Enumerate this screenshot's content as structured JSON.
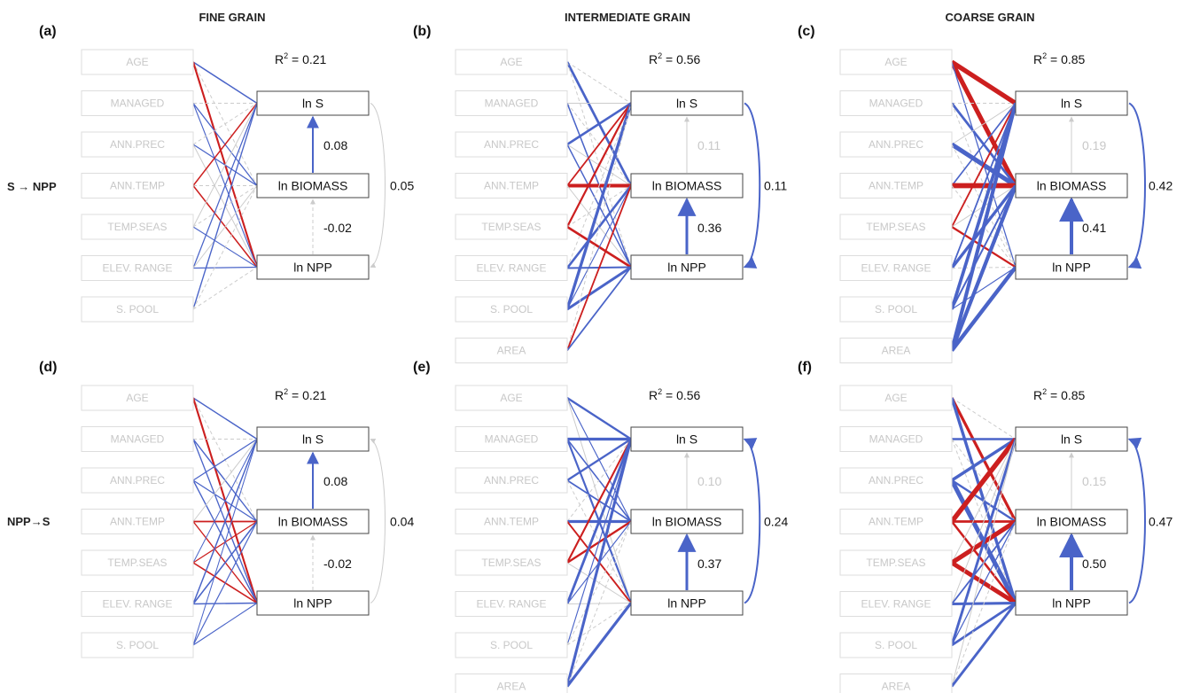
{
  "colors": {
    "blue": "#4a64c8",
    "red": "#cc1f1f",
    "grey": "#cccccc",
    "box_border": "#444444",
    "faded_border": "#dddddd",
    "faded_text": "#c8c8c8"
  },
  "columns": [
    "FINE GRAIN",
    "INTERMEDIATE GRAIN",
    "COARSE GRAIN"
  ],
  "rows": [
    "S → NPP",
    "NPP→S"
  ],
  "panels": [
    {
      "tag": "(a)",
      "r2": "R² = 0.21",
      "r2_base": "R",
      "r2_sup": "2",
      "r2_rest": " = 0.21",
      "predictors": [
        "AGE",
        "MANAGED",
        "ANN.PREC",
        "ANN.TEMP",
        "TEMP.SEAS",
        "ELEV. RANGE",
        "S. POOL"
      ],
      "coef_top": "0.08",
      "coef_bottom": "-0.02",
      "coef_side": "0.05",
      "top_faded": false,
      "bottom_faded": true,
      "side_faded": true,
      "direction": "down"
    },
    {
      "tag": "(b)",
      "r2": "R² = 0.56",
      "r2_base": "R",
      "r2_sup": "2",
      "r2_rest": " = 0.56",
      "predictors": [
        "AGE",
        "MANAGED",
        "ANN.PREC",
        "ANN.TEMP",
        "TEMP.SEAS",
        "ELEV. RANGE",
        "S. POOL",
        "AREA"
      ],
      "coef_top": "0.11",
      "coef_bottom": "0.36",
      "coef_side": "0.11",
      "top_faded": true,
      "bottom_faded": false,
      "side_faded": false,
      "direction": "down"
    },
    {
      "tag": "(c)",
      "r2": "R² = 0.85",
      "r2_base": "R",
      "r2_sup": "2",
      "r2_rest": " = 0.85",
      "predictors": [
        "AGE",
        "MANAGED",
        "ANN.PREC",
        "ANN.TEMP",
        "TEMP.SEAS",
        "ELEV. RANGE",
        "S. POOL",
        "AREA"
      ],
      "coef_top": "0.19",
      "coef_bottom": "0.41",
      "coef_side": "0.42",
      "top_faded": true,
      "bottom_faded": false,
      "side_faded": false,
      "direction": "down"
    },
    {
      "tag": "(d)",
      "r2": "R² = 0.21",
      "r2_base": "R",
      "r2_sup": "2",
      "r2_rest": " = 0.21",
      "predictors": [
        "AGE",
        "MANAGED",
        "ANN.PREC",
        "ANN.TEMP",
        "TEMP.SEAS",
        "ELEV. RANGE",
        "S. POOL"
      ],
      "coef_top": "0.08",
      "coef_bottom": "-0.02",
      "coef_side": "0.04",
      "top_faded": false,
      "bottom_faded": true,
      "side_faded": true,
      "direction": "up"
    },
    {
      "tag": "(e)",
      "r2": "R² = 0.56",
      "r2_base": "R",
      "r2_sup": "2",
      "r2_rest": " = 0.56",
      "predictors": [
        "AGE",
        "MANAGED",
        "ANN.PREC",
        "ANN.TEMP",
        "TEMP.SEAS",
        "ELEV. RANGE",
        "S. POOL",
        "AREA"
      ],
      "coef_top": "0.10",
      "coef_bottom": "0.37",
      "coef_side": "0.24",
      "top_faded": true,
      "bottom_faded": false,
      "side_faded": false,
      "direction": "up"
    },
    {
      "tag": "(f)",
      "r2": "R² = 0.85",
      "r2_base": "R",
      "r2_sup": "2",
      "r2_rest": " = 0.85",
      "predictors": [
        "AGE",
        "MANAGED",
        "ANN.PREC",
        "ANN.TEMP",
        "TEMP.SEAS",
        "ELEV. RANGE",
        "S. POOL",
        "AREA"
      ],
      "coef_top": "0.15",
      "coef_bottom": "0.50",
      "coef_side": "0.47",
      "top_faded": true,
      "bottom_faded": false,
      "side_faded": false,
      "direction": "up"
    }
  ],
  "nodes": [
    "ln S",
    "ln BIOMASS",
    "ln NPP"
  ]
}
